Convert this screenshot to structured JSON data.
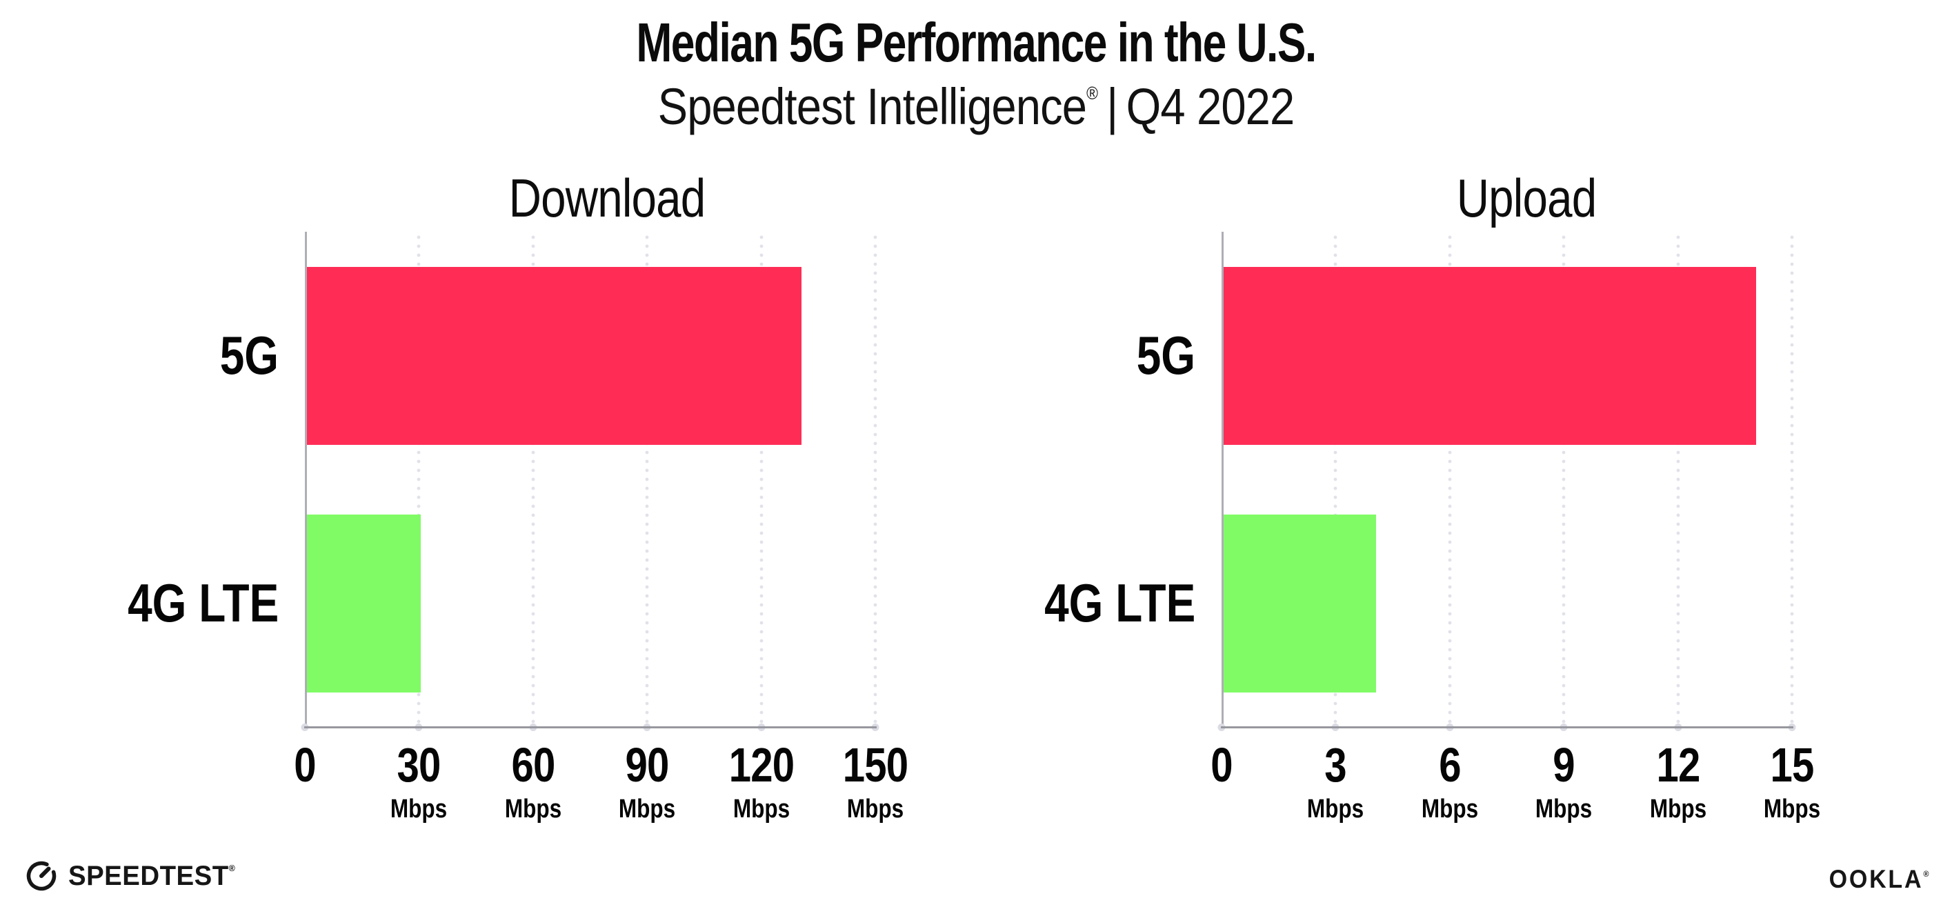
{
  "title": "Median 5G Performance in the U.S.",
  "subtitle": {
    "product": "Speedtest Intelligence",
    "mark": "®",
    "separator": "|",
    "period": "Q4 2022"
  },
  "chart_data": [
    {
      "type": "bar",
      "orientation": "horizontal",
      "title": "Download",
      "categories": [
        "5G",
        "4G LTE"
      ],
      "values": [
        130,
        30
      ],
      "unit": "Mbps",
      "xlim": [
        0,
        150
      ],
      "ticks": [
        0,
        30,
        60,
        90,
        120,
        150
      ],
      "colors": [
        "#ff2d56",
        "#80fb66"
      ],
      "grid": "dotted-vertical",
      "legend": "none"
    },
    {
      "type": "bar",
      "orientation": "horizontal",
      "title": "Upload",
      "categories": [
        "5G",
        "4G LTE"
      ],
      "values": [
        14,
        4
      ],
      "unit": "Mbps",
      "xlim": [
        0,
        15
      ],
      "ticks": [
        0,
        3,
        6,
        9,
        12,
        15
      ],
      "colors": [
        "#ff2d56",
        "#80fb66"
      ],
      "grid": "dotted-vertical",
      "legend": "none"
    }
  ],
  "footer": {
    "speedtest_label": "SPEEDTEST",
    "speedtest_mark": "®",
    "ookla_label": "OOKLA",
    "ookla_mark": "®"
  },
  "colors": {
    "bar_5g": "#ff2d56",
    "bar_4g_lte": "#80fb66",
    "gridline": "#e1e1ea",
    "axis": "#97979f",
    "text": "#0b0b0b",
    "background": "#ffffff"
  }
}
